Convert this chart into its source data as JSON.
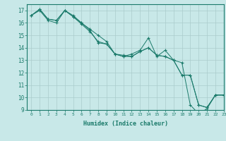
{
  "title": "",
  "xlabel": "Humidex (Indice chaleur)",
  "ylabel": "",
  "xlim": [
    -0.5,
    23
  ],
  "ylim": [
    9,
    17.5
  ],
  "yticks": [
    9,
    10,
    11,
    12,
    13,
    14,
    15,
    16,
    17
  ],
  "xticks": [
    0,
    1,
    2,
    3,
    4,
    5,
    6,
    7,
    8,
    9,
    10,
    11,
    12,
    13,
    14,
    15,
    16,
    17,
    18,
    19,
    20,
    21,
    22,
    23
  ],
  "bg_color": "#c8e8e8",
  "grid_major_color": "#aacccc",
  "grid_minor_color": "#d8eeee",
  "line_color": "#1a7a6a",
  "series": [
    [
      16.6,
      17.0,
      16.2,
      16.0,
      17.0,
      16.6,
      16.0,
      15.5,
      15.0,
      14.5,
      13.5,
      13.3,
      13.5,
      13.8,
      14.8,
      13.3,
      13.8,
      13.0,
      12.8,
      9.4,
      8.7,
      9.1,
      10.2,
      10.2
    ],
    [
      16.6,
      17.1,
      16.3,
      16.2,
      17.0,
      16.5,
      16.0,
      15.4,
      14.4,
      14.3,
      13.5,
      13.4,
      13.3,
      13.7,
      14.0,
      13.4,
      13.3,
      13.0,
      11.8,
      11.8,
      9.4,
      9.2,
      10.2,
      10.2
    ],
    [
      16.6,
      17.1,
      16.3,
      16.2,
      17.0,
      16.5,
      15.9,
      15.3,
      14.5,
      14.3,
      13.5,
      13.3,
      13.3,
      13.7,
      14.0,
      13.4,
      13.3,
      13.0,
      11.8,
      11.8,
      9.4,
      9.2,
      10.2,
      10.2
    ]
  ]
}
